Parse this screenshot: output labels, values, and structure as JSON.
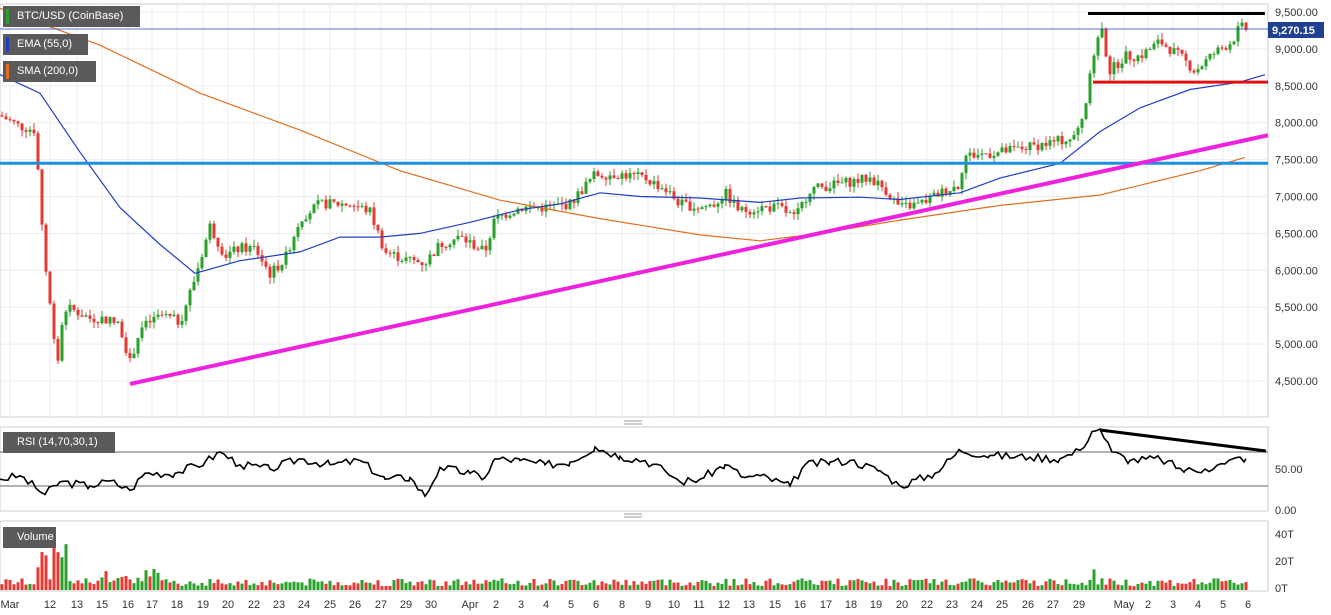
{
  "legend": {
    "symbol": "BTC/USD (CoinBase)",
    "ema": "EMA (55,0)",
    "sma": "SMA (200,0)",
    "rsi": "RSI (14,70,30,1)",
    "volume": "Volume"
  },
  "colors": {
    "up": "#2aa12a",
    "down": "#e53935",
    "ema": "#1f3fbf",
    "sma": "#e07020",
    "support_blue": "#1e90e0",
    "trend_magenta": "#ee22dd",
    "resistance_black": "#000000",
    "support_red": "#e01010"
  },
  "chart_data": [
    {
      "type": "candlestick",
      "title": "BTC/USD (CoinBase)",
      "y_ticks": [
        "9,500.00",
        "9,000.00",
        "8,500.00",
        "8,000.00",
        "7,500.00",
        "7,000.00",
        "6,500.00",
        "6,000.00",
        "5,500.00",
        "5,000.00",
        "4,500.00"
      ],
      "ylim": [
        4000,
        9620
      ],
      "last_price": "9,270.15",
      "x_labels": [
        "Mar",
        "12",
        "13",
        "15",
        "16",
        "17",
        "18",
        "19",
        "20",
        "22",
        "23",
        "24",
        "25",
        "26",
        "27",
        "29",
        "30",
        "Apr",
        "2",
        "3",
        "4",
        "5",
        "6",
        "8",
        "9",
        "10",
        "11",
        "12",
        "13",
        "15",
        "16",
        "17",
        "18",
        "19",
        "20",
        "22",
        "23",
        "24",
        "25",
        "26",
        "27",
        "29",
        "May",
        "2",
        "3",
        "4",
        "5",
        "6"
      ],
      "series": [
        {
          "name": "EMA (55,0)",
          "points": [
            [
              0,
              8650
            ],
            [
              40,
              8400
            ],
            [
              80,
              7600
            ],
            [
              120,
              6850
            ],
            [
              160,
              6350
            ],
            [
              195,
              5960
            ],
            [
              240,
              6130
            ],
            [
              300,
              6250
            ],
            [
              340,
              6450
            ],
            [
              380,
              6450
            ],
            [
              420,
              6500
            ],
            [
              470,
              6650
            ],
            [
              520,
              6820
            ],
            [
              560,
              6900
            ],
            [
              600,
              7050
            ],
            [
              640,
              7000
            ],
            [
              700,
              6980
            ],
            [
              760,
              6920
            ],
            [
              800,
              6980
            ],
            [
              860,
              6990
            ],
            [
              900,
              6960
            ],
            [
              960,
              7050
            ],
            [
              1000,
              7250
            ],
            [
              1060,
              7450
            ],
            [
              1100,
              7880
            ],
            [
              1140,
              8200
            ],
            [
              1190,
              8450
            ],
            [
              1240,
              8550
            ],
            [
              1265,
              8650
            ]
          ]
        },
        {
          "name": "SMA (200,0)",
          "points": [
            [
              0,
              9550
            ],
            [
              100,
              9050
            ],
            [
              200,
              8400
            ],
            [
              300,
              7900
            ],
            [
              400,
              7350
            ],
            [
              500,
              6950
            ],
            [
              600,
              6700
            ],
            [
              700,
              6480
            ],
            [
              760,
              6400
            ],
            [
              820,
              6500
            ],
            [
              900,
              6680
            ],
            [
              1000,
              6880
            ],
            [
              1100,
              7020
            ],
            [
              1200,
              7350
            ],
            [
              1245,
              7530
            ]
          ]
        }
      ],
      "annotations": [
        {
          "label": "resistance",
          "price": 9480,
          "x_range": [
            1088,
            1265
          ]
        },
        {
          "label": "support",
          "price": 8550,
          "x_range": [
            1093,
            1268
          ]
        },
        {
          "label": "horizontal level",
          "price": 7450,
          "x_range": [
            0,
            1268
          ]
        },
        {
          "label": "rising trendline",
          "from": [
            130,
            4460
          ],
          "to": [
            1268,
            7830
          ]
        }
      ]
    },
    {
      "type": "line",
      "title": "RSI (14,70,30,1)",
      "y_ticks": [
        "50.00",
        "0.00"
      ],
      "levels": [
        70,
        30
      ],
      "annotations": [
        {
          "label": "bearish divergence",
          "from_rsi": 97,
          "to_rsi": 70
        }
      ]
    },
    {
      "type": "bar",
      "title": "Volume",
      "y_ticks": [
        "40T",
        "20T",
        "0T"
      ]
    }
  ]
}
